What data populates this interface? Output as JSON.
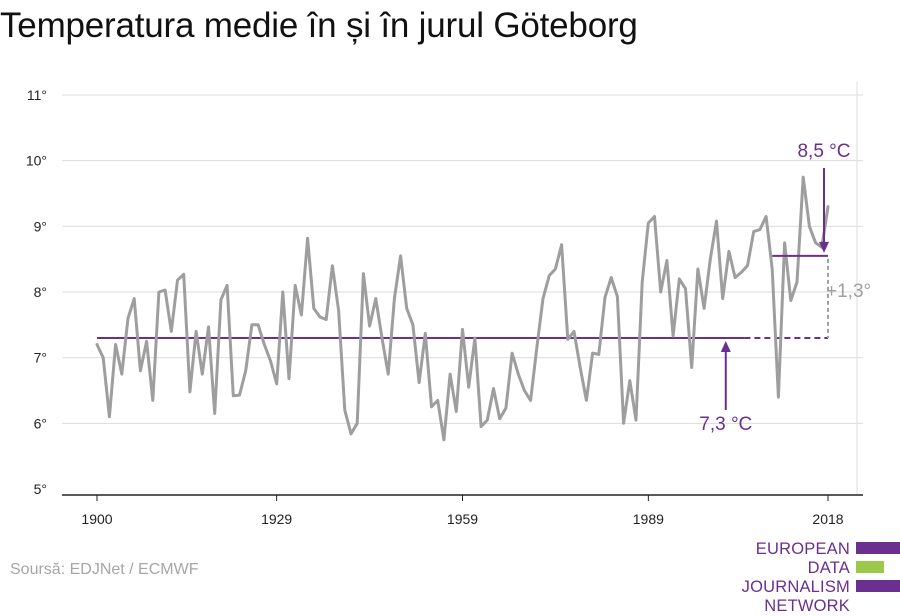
{
  "title": "Temperatura medie în și în jurul Göteborg",
  "source": "Soursă: EDJNet / ECMWF",
  "logo": {
    "line1": "EUROPEAN",
    "line2": "DATA JOURNALISM",
    "line3": "NETWORK"
  },
  "colors": {
    "series": "#9e9e9e",
    "accent": "#6b2f8f",
    "delta": "#a0a0a0",
    "grid": "#dddddd",
    "axis": "#222222",
    "logo_green": "#9cc94a"
  },
  "chart_data": {
    "type": "line",
    "title": "Temperatura medie în și în jurul Göteborg",
    "xlabel": "",
    "ylabel": "",
    "xlim": [
      1900,
      2018
    ],
    "ylim": [
      5,
      11
    ],
    "yticks": [
      5,
      6,
      7,
      8,
      9,
      10,
      11
    ],
    "ytick_labels": [
      "5°",
      "6°",
      "7°",
      "8°",
      "9°",
      "10°",
      "11°"
    ],
    "xticks": [
      1900,
      1929,
      1959,
      1989,
      2018
    ],
    "xtick_labels": [
      "1900",
      "1929",
      "1959",
      "1989",
      "2018"
    ],
    "grid": true,
    "series": [
      {
        "x": [
          1900,
          1901,
          1902,
          1903,
          1904,
          1905,
          1906,
          1907,
          1908,
          1909,
          1910,
          1911,
          1912,
          1913,
          1914,
          1915,
          1916,
          1917,
          1918,
          1919,
          1920,
          1921,
          1922,
          1923,
          1924,
          1925,
          1926,
          1927,
          1928,
          1929,
          1930,
          1931,
          1932,
          1933,
          1934,
          1935,
          1936,
          1937,
          1938,
          1939,
          1940,
          1941,
          1942,
          1943,
          1944,
          1945,
          1946,
          1947,
          1948,
          1949,
          1950,
          1951,
          1952,
          1953,
          1954,
          1955,
          1956,
          1957,
          1958,
          1959,
          1960,
          1961,
          1962,
          1963,
          1964,
          1965,
          1966,
          1967,
          1968,
          1969,
          1970,
          1971,
          1972,
          1973,
          1974,
          1975,
          1976,
          1977,
          1978,
          1979,
          1980,
          1981,
          1982,
          1983,
          1984,
          1985,
          1986,
          1987,
          1988,
          1989,
          1990,
          1991,
          1992,
          1993,
          1994,
          1995,
          1996,
          1997,
          1998,
          1999,
          2000,
          2001,
          2002,
          2003,
          2004,
          2005,
          2006,
          2007,
          2008,
          2009,
          2010,
          2011,
          2012,
          2013,
          2014,
          2015,
          2016,
          2017,
          2018
        ],
        "values": [
          7.2,
          7.0,
          6.1,
          7.2,
          6.75,
          7.6,
          7.9,
          6.8,
          7.25,
          6.35,
          8.0,
          8.03,
          7.4,
          8.18,
          8.27,
          6.48,
          7.4,
          6.75,
          7.47,
          6.15,
          7.88,
          8.1,
          6.42,
          6.43,
          6.8,
          7.5,
          7.5,
          7.2,
          6.95,
          6.6,
          8.0,
          6.68,
          8.1,
          7.65,
          8.82,
          7.75,
          7.62,
          7.58,
          8.4,
          7.72,
          6.2,
          5.84,
          6.0,
          8.28,
          7.48,
          7.9,
          7.3,
          6.75,
          7.9,
          8.55,
          7.75,
          7.5,
          6.62,
          7.37,
          6.25,
          6.35,
          5.75,
          6.75,
          6.18,
          7.43,
          6.55,
          7.3,
          5.95,
          6.05,
          6.53,
          6.07,
          6.23,
          7.07,
          6.75,
          6.5,
          6.35,
          7.15,
          7.9,
          8.25,
          8.35,
          8.72,
          7.28,
          7.4,
          6.85,
          6.35,
          7.07,
          7.05,
          7.92,
          8.22,
          7.93,
          6.0,
          6.65,
          6.05,
          8.15,
          9.05,
          9.15,
          8.0,
          8.48,
          7.33,
          8.2,
          8.05,
          6.85,
          8.35,
          7.75,
          8.5,
          9.08,
          7.9,
          8.62,
          8.22,
          8.3,
          8.4,
          8.92,
          8.95,
          9.15,
          8.35,
          6.4,
          8.75,
          7.87,
          8.15,
          9.75,
          9.0,
          8.75,
          8.68,
          9.3
        ]
      }
    ],
    "annotations": {
      "baseline_label": "7,3 °C",
      "baseline_value": 7.3,
      "baseline_from": 1900,
      "baseline_to": 2018,
      "recent_label": "8,5 °C",
      "recent_value": 8.55,
      "recent_from": 2009,
      "recent_to": 2018,
      "delta_label": "+1,3°"
    }
  }
}
